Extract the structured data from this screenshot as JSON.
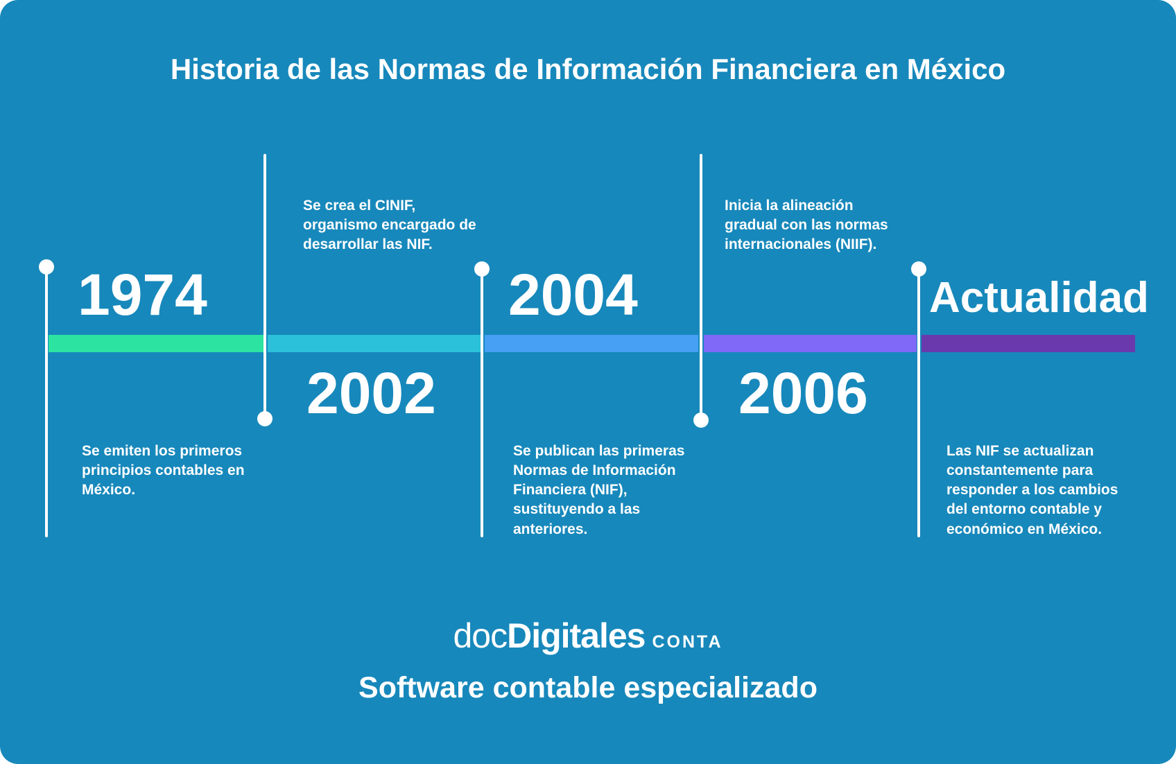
{
  "title": "Historia de las Normas de Información Financiera en México",
  "theme": {
    "background": "#1788BB",
    "text_color": "#FFFFFF"
  },
  "timeline": {
    "milestones": [
      {
        "year": "1974",
        "description": "Se emiten los primeros\nprincipios contables en\nMéxico.",
        "segment_color": "#2DE3A1",
        "label_position": "above-bar"
      },
      {
        "year": "2002",
        "description": "Se crea el CINIF,\norganismo encargado de\ndesarrollar las NIF.",
        "segment_color": "#2BC1DB",
        "label_position": "below-bar"
      },
      {
        "year": "2004",
        "description": "Se publican las primeras\nNormas de Información\nFinanciera (NIF),\nsustituyendo a las\nanteriores.",
        "segment_color": "#47A0F4",
        "label_position": "above-bar"
      },
      {
        "year": "2006",
        "description": "Inicia la alineación\ngradual con las normas\ninternacionales (NIIF).",
        "segment_color": "#7F69F6",
        "label_position": "below-bar"
      },
      {
        "year": "Actualidad",
        "description": "Las NIF se actualizan\nconstantemente para\nresponder a los cambios\ndel entorno contable y\neconómico en México.",
        "segment_color": "#6A3AAD",
        "label_position": "above-bar"
      }
    ]
  },
  "footer": {
    "brand_doc": "doc",
    "brand_digitales": "Digitales",
    "brand_suffix": "CONTA",
    "tagline": "Software contable especializado"
  }
}
